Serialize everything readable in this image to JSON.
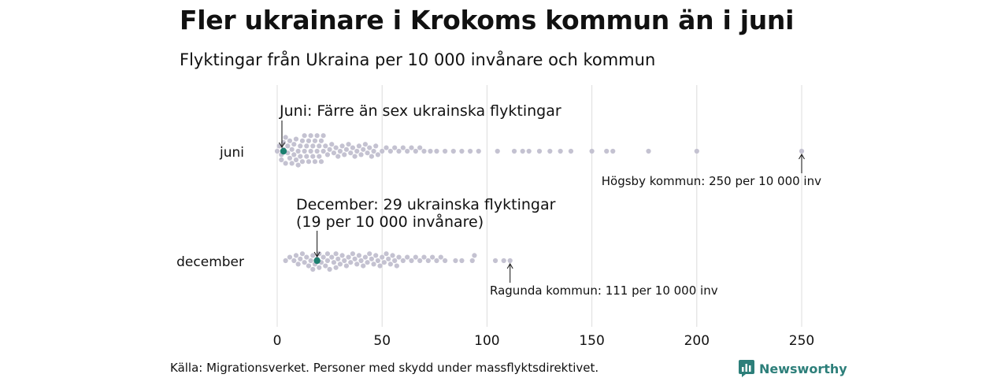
{
  "header": {
    "title": "Fler ukrainare i Krokoms kommun än i juni",
    "subtitle": "Flyktingar från Ukraina per 10 000 invånare och kommun"
  },
  "footer": {
    "source": "Källa: Migrationsverket. Personer med skydd under massflyktsdirektivet.",
    "logo_text": "Newsworthy"
  },
  "colors": {
    "dots": "#c4c2d1",
    "highlight": "#1c7f70",
    "grid": "#dcdcdc",
    "logo": "#2d7f7a"
  },
  "chart_data": {
    "type": "scatter",
    "subtype": "beeswarm",
    "title": "Fler ukrainare i Krokoms kommun än i juni",
    "subtitle": "Flyktingar från Ukraina per 10 000 invånare och kommun",
    "xlabel": "",
    "ylabel": "",
    "xlim": [
      0,
      250
    ],
    "xticks": [
      0,
      50,
      100,
      150,
      200,
      250
    ],
    "tick_labels": [
      "0",
      "50",
      "100",
      "150",
      "200",
      "250"
    ],
    "grid": "vertical",
    "categories": [
      "juni",
      "december"
    ],
    "series": [
      {
        "category": "juni",
        "highlight_value": 3,
        "max_value": 250,
        "approx_values": [
          0,
          1,
          2,
          2,
          3,
          3,
          4,
          4,
          5,
          5,
          6,
          6,
          7,
          7,
          8,
          8,
          9,
          9,
          10,
          10,
          11,
          11,
          12,
          12,
          13,
          13,
          14,
          14,
          15,
          15,
          16,
          16,
          17,
          17,
          18,
          18,
          19,
          19,
          20,
          20,
          21,
          21,
          22,
          22,
          23,
          24,
          25,
          26,
          27,
          28,
          29,
          30,
          31,
          32,
          33,
          34,
          35,
          36,
          37,
          38,
          39,
          40,
          41,
          42,
          43,
          44,
          45,
          46,
          47,
          48,
          50,
          52,
          54,
          56,
          58,
          60,
          62,
          64,
          66,
          68,
          70,
          73,
          76,
          80,
          84,
          88,
          92,
          96,
          105,
          113,
          117,
          120,
          125,
          130,
          135,
          140,
          150,
          157,
          160,
          177,
          200,
          250
        ]
      },
      {
        "category": "december",
        "highlight_value": 19,
        "max_value": 111,
        "approx_values": [
          4,
          6,
          8,
          9,
          10,
          11,
          12,
          13,
          14,
          15,
          16,
          17,
          17,
          18,
          19,
          20,
          20,
          21,
          22,
          23,
          24,
          24,
          25,
          26,
          27,
          28,
          28,
          29,
          30,
          31,
          32,
          33,
          34,
          35,
          36,
          37,
          38,
          39,
          40,
          41,
          42,
          43,
          44,
          45,
          46,
          47,
          48,
          49,
          50,
          51,
          52,
          53,
          54,
          55,
          56,
          57,
          58,
          60,
          62,
          64,
          66,
          68,
          70,
          72,
          74,
          76,
          78,
          80,
          85,
          88,
          93,
          94,
          104,
          108,
          111
        ]
      }
    ],
    "annotations": {
      "juni_highlight": "Juni: Färre än sex ukrainska flyktingar",
      "december_highlight_line1": "December: 29 ukrainska flyktingar",
      "december_highlight_line2": "(19 per 10 000 invånare)",
      "juni_max": "Högsby kommun: 250 per 10 000 inv",
      "december_max": "Ragunda kommun: 111 per 10 000 inv"
    }
  }
}
